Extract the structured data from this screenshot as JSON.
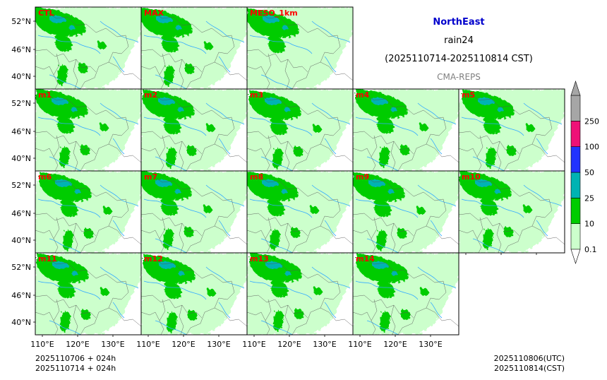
{
  "header": {
    "region": "NorthEast",
    "variable": "rain24",
    "period": "(2025110714-2025110814 CST)",
    "system": "CMA-REPS"
  },
  "panels": [
    [
      "CTL",
      "MAX",
      "MESO_1km"
    ],
    [
      "m1",
      "m2",
      "m3",
      "m4",
      "m5"
    ],
    [
      "m6",
      "m7",
      "m8",
      "m9",
      "m10"
    ],
    [
      "m11",
      "m12",
      "m13",
      "m14"
    ]
  ],
  "axes": {
    "lat_ticks": [
      "52°N",
      "46°N",
      "40°N"
    ],
    "lon_ticks": [
      "110°E",
      "120°E",
      "130°E"
    ]
  },
  "colorbar": {
    "levels": [
      "0.1",
      "10",
      "25",
      "50",
      "100",
      "250"
    ],
    "colors": [
      "#ccffcc",
      "#00cc00",
      "#00b3b3",
      "#2233ff",
      "#ee1177",
      "#a6a6a6"
    ]
  },
  "footer": {
    "left_line1": "2025110706  +  024h",
    "left_line2": "2025110714  +  024h",
    "right_line1": "2025110806(UTC)",
    "right_line2": "2025110814(CST)"
  },
  "colors": {
    "light_rain": "#ccffcc",
    "moderate_rain": "#00cc00",
    "heavy_rain": "#00b3b3",
    "rivers": "#33aaff",
    "panel_label": "#ff0000"
  }
}
